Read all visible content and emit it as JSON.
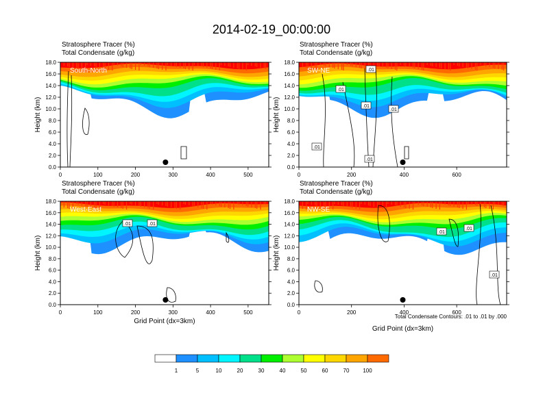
{
  "title": "2014-02-19_00:00:00",
  "colors": {
    "levels": [
      "#ffffff",
      "#1e90ff",
      "#00bfff",
      "#00f5ff",
      "#00e08a",
      "#00ee00",
      "#adff2f",
      "#ffff00",
      "#ffd700",
      "#ffa500",
      "#ff6a00",
      "#ff0000"
    ],
    "background": "#ffffff",
    "contour": "#000000"
  },
  "colorbar": {
    "labels": [
      "1",
      "5",
      "10",
      "20",
      "30",
      "40",
      "50",
      "60",
      "70",
      "100"
    ]
  },
  "annotation": "Total Condensate Contours: .01 to .01 by .000",
  "chart_data": [
    {
      "type": "heatmap",
      "panel_label": "South-North",
      "subtitle_left": "Stratosphere Tracer   (%)",
      "subtitle_left2": "Total Condensate   (g/kg)",
      "ylabel": "Height (km)",
      "xlabel": "",
      "xlim": [
        0,
        555
      ],
      "ylim": [
        0,
        18
      ],
      "xticks": [
        "0",
        "100",
        "200",
        "300",
        "400",
        "500"
      ],
      "yticks": [
        "0.0",
        "2.0",
        "4.0",
        "6.0",
        "8.0",
        "10.0",
        "12.0",
        "14.0",
        "16.0",
        "18.0"
      ],
      "marker_x": 280,
      "contour_labels": []
    },
    {
      "type": "heatmap",
      "panel_label": "SW-NE",
      "subtitle_left": "Stratosphere Tracer   (%)",
      "subtitle_left2": "Total Condensate   (g/kg)",
      "ylabel": "Height (km)",
      "xlabel": "",
      "xlim": [
        0,
        790
      ],
      "ylim": [
        0,
        18
      ],
      "xticks": [
        "0",
        "200",
        "400",
        "600"
      ],
      "yticks": [
        "0.0",
        "2.0",
        "4.0",
        "6.0",
        "8.0",
        "10.0",
        "12.0",
        "14.0",
        "16.0",
        "18.0"
      ],
      "marker_x": 395,
      "contour_labels": [
        ".01",
        ".01",
        ".01",
        ".01",
        ".01",
        ".01"
      ]
    },
    {
      "type": "heatmap",
      "panel_label": "West-East",
      "subtitle_left": "Stratosphere Tracer   (%)",
      "subtitle_left2": "Total Condensate   (g/kg)",
      "ylabel": "Height (km)",
      "xlabel": "Grid Point (dx=3km)",
      "xlim": [
        0,
        555
      ],
      "ylim": [
        0,
        18
      ],
      "xticks": [
        "0",
        "100",
        "200",
        "300",
        "400",
        "500"
      ],
      "yticks": [
        "0.0",
        "2.0",
        "4.0",
        "6.0",
        "8.0",
        "10.0",
        "12.0",
        "14.0",
        "16.0",
        "18.0"
      ],
      "marker_x": 280,
      "contour_labels": [
        ".01",
        ".01"
      ]
    },
    {
      "type": "heatmap",
      "panel_label": "NW-SE",
      "subtitle_left": "Stratosphere Tracer   (%)",
      "subtitle_left2": "Total Condensate   (g/kg)",
      "ylabel": "Height (km)",
      "xlabel": "Grid Point (dx=3km)",
      "xlim": [
        0,
        790
      ],
      "ylim": [
        0,
        18
      ],
      "xticks": [
        "0",
        "200",
        "400",
        "600"
      ],
      "yticks": [
        "0.0",
        "2.0",
        "4.0",
        "6.0",
        "8.0",
        "10.0",
        "12.0",
        "14.0",
        "16.0",
        "18.0"
      ],
      "marker_x": 395,
      "contour_labels": [
        ".01",
        ".01",
        ".01"
      ]
    }
  ]
}
